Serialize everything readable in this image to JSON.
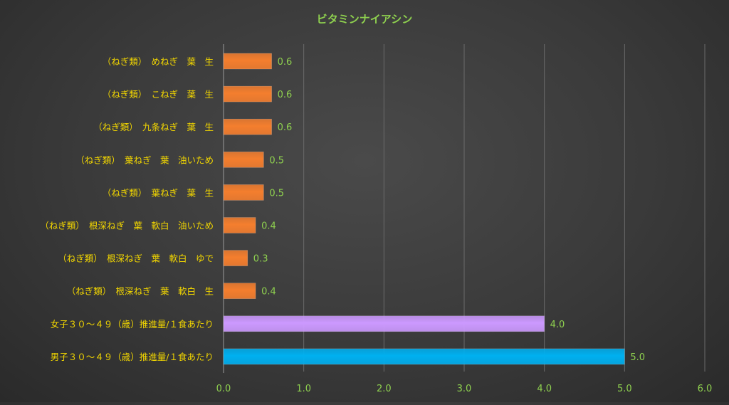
{
  "chart_data": {
    "type": "bar",
    "orientation": "horizontal",
    "title": "ビタミンナイアシン",
    "xlim": [
      0,
      6
    ],
    "x_ticks": [
      "0.0",
      "1.0",
      "2.0",
      "3.0",
      "4.0",
      "5.0",
      "6.0"
    ],
    "grid": "vertical",
    "legend": "none",
    "categories": [
      "（ねぎ類）　めねぎ　葉　生",
      "（ねぎ類）　こねぎ　葉　生",
      "（ねぎ類）　九条ねぎ　葉　生",
      "（ねぎ類）　葉ねぎ　葉　油いため",
      "（ねぎ類）　葉ねぎ　葉　生",
      "（ねぎ類）　根深ねぎ　葉　軟白　油いため",
      "（ねぎ類）　根深ねぎ　葉　軟白　ゆで",
      "（ねぎ類）　根深ねぎ　葉　軟白　生",
      "女子３０～４９（歳）推進量/１食あたり",
      "男子３０～４９（歳）推進量/１食あたり"
    ],
    "values": [
      0.6,
      0.6,
      0.6,
      0.5,
      0.5,
      0.4,
      0.3,
      0.4,
      4.0,
      5.0
    ],
    "value_labels": [
      "0.6",
      "0.6",
      "0.6",
      "0.5",
      "0.5",
      "0.4",
      "0.3",
      "0.4",
      "4.0",
      "5.0"
    ],
    "bar_colors": [
      "#f47e2e",
      "#f47e2e",
      "#f47e2e",
      "#f47e2e",
      "#f47e2e",
      "#f47e2e",
      "#f47e2e",
      "#f47e2e",
      "#cc99ff",
      "#00b0f0"
    ],
    "colors": {
      "title": "#8fd14f",
      "category_label": "#f2d600",
      "value_label": "#8fd14f",
      "tick_label": "#8fd14f",
      "gridline": "#6b6b6b"
    }
  }
}
